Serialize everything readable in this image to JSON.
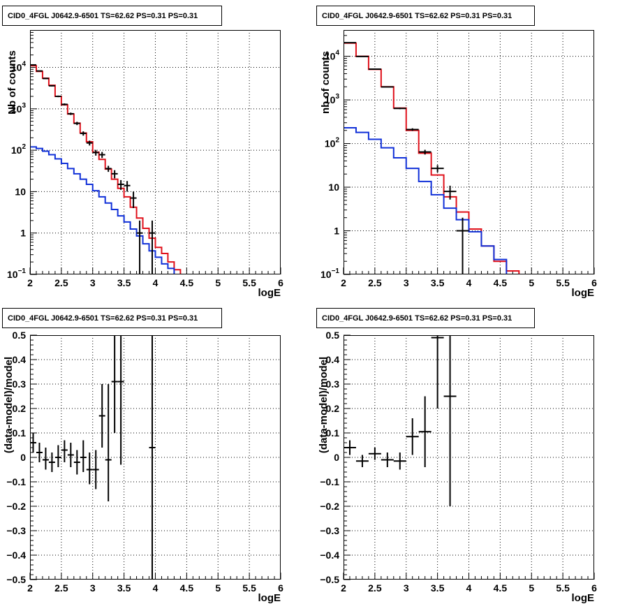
{
  "colors": {
    "data": "#000000",
    "total_model": "#e0101a",
    "component": "#1030d8",
    "grid": "#000000"
  },
  "chart_data": [
    {
      "type": "line",
      "title": "CID0_4FGL J0642.9-6501 TS=62.62 PS=0.31 PS=0.31",
      "xlabel": "logE",
      "ylabel": "Nb of counts",
      "xlim": [
        2,
        6
      ],
      "ylim": [
        0.1,
        80000
      ],
      "yscale": "log",
      "grid": true,
      "xticks": [
        "2",
        "2.5",
        "3",
        "3.5",
        "4",
        "4.5",
        "5",
        "5.5",
        "6"
      ],
      "yticks": [
        {
          "value": 0.1,
          "label": "10",
          "exp": "−1"
        },
        {
          "value": 1,
          "label": "1",
          "exp": ""
        },
        {
          "value": 10,
          "label": "10",
          "exp": ""
        },
        {
          "value": 100,
          "label": "10",
          "exp": "2"
        },
        {
          "value": 1000,
          "label": "10",
          "exp": "3"
        },
        {
          "value": 10000,
          "label": "10",
          "exp": "4"
        }
      ],
      "series": [
        {
          "role": "total_model",
          "style": "step",
          "edges": [
            2.0,
            2.1,
            2.2,
            2.3,
            2.4,
            2.5,
            2.6,
            2.7,
            2.8,
            2.9,
            3.0,
            3.1,
            3.2,
            3.3,
            3.4,
            3.5,
            3.6,
            3.7,
            3.8,
            3.9,
            4.0,
            4.1,
            4.2,
            4.3,
            4.4,
            4.5,
            4.6,
            4.7,
            4.8,
            4.9,
            5.0,
            5.1,
            5.2,
            5.3,
            5.4,
            5.5,
            5.6,
            5.7,
            5.8,
            5.9,
            6.0
          ],
          "values": [
            11000,
            8000,
            5500,
            3700,
            2000,
            1250,
            750,
            450,
            260,
            160,
            90,
            60,
            35,
            20,
            12,
            7.5,
            4.2,
            2.3,
            1.3,
            0.75,
            0.45,
            0.32,
            0.2,
            0.13,
            0.1,
            0.1,
            0.1,
            0.1,
            0.1,
            0.1,
            0.1,
            0.1,
            0.1,
            0.1,
            0.1,
            0.1,
            0.1,
            0.1,
            0.1,
            0.1
          ]
        },
        {
          "role": "component",
          "style": "step",
          "edges": [
            2.0,
            2.1,
            2.2,
            2.3,
            2.4,
            2.5,
            2.6,
            2.7,
            2.8,
            2.9,
            3.0,
            3.1,
            3.2,
            3.3,
            3.4,
            3.5,
            3.6,
            3.7,
            3.8,
            3.9,
            4.0,
            4.1,
            4.2,
            4.3,
            4.4,
            4.5,
            4.6,
            4.7,
            4.8,
            4.9,
            5.0,
            5.1,
            5.2,
            5.3,
            5.4,
            5.5,
            5.6,
            5.7,
            5.8,
            5.9,
            6.0
          ],
          "values": [
            120,
            110,
            95,
            78,
            62,
            48,
            36,
            27,
            20,
            15,
            10.5,
            7.5,
            5.3,
            3.7,
            2.6,
            1.85,
            1.25,
            0.85,
            0.55,
            0.37,
            0.26,
            0.18,
            0.14,
            0.1,
            0.1,
            0.1,
            0.1,
            0.1,
            0.1,
            0.1,
            0.1,
            0.1,
            0.1,
            0.1,
            0.1,
            0.1,
            0.1,
            0.1,
            0.1,
            0.1
          ]
        },
        {
          "role": "data",
          "style": "errorbar",
          "xhalf": 0.05,
          "points": [
            {
              "x": 2.05,
              "y": 11500,
              "lo": 11290,
              "hi": 11710
            },
            {
              "x": 2.15,
              "y": 8200,
              "lo": 8020,
              "hi": 8380
            },
            {
              "x": 2.25,
              "y": 5400,
              "lo": 5250,
              "hi": 5550
            },
            {
              "x": 2.35,
              "y": 3600,
              "lo": 3480,
              "hi": 3720
            },
            {
              "x": 2.45,
              "y": 2000,
              "lo": 1910,
              "hi": 2090
            },
            {
              "x": 2.55,
              "y": 1280,
              "lo": 1210,
              "hi": 1350
            },
            {
              "x": 2.65,
              "y": 760,
              "lo": 710,
              "hi": 810
            },
            {
              "x": 2.75,
              "y": 445,
              "lo": 405,
              "hi": 485
            },
            {
              "x": 2.85,
              "y": 255,
              "lo": 225,
              "hi": 285
            },
            {
              "x": 2.95,
              "y": 150,
              "lo": 130,
              "hi": 170
            },
            {
              "x": 3.05,
              "y": 88,
              "lo": 74,
              "hi": 102
            },
            {
              "x": 3.15,
              "y": 78,
              "lo": 65,
              "hi": 91
            },
            {
              "x": 3.25,
              "y": 36,
              "lo": 30,
              "hi": 42
            },
            {
              "x": 3.35,
              "y": 27,
              "lo": 21,
              "hi": 33
            },
            {
              "x": 3.45,
              "y": 15,
              "lo": 11,
              "hi": 19
            },
            {
              "x": 3.55,
              "y": 14,
              "lo": 10,
              "hi": 18
            },
            {
              "x": 3.65,
              "y": 7,
              "lo": 4,
              "hi": 10
            },
            {
              "x": 3.75,
              "y": 1,
              "lo": 0.1,
              "hi": 2
            },
            {
              "x": 3.95,
              "y": 1,
              "lo": 0.1,
              "hi": 2
            }
          ]
        }
      ]
    },
    {
      "type": "line",
      "title": "CID0_4FGL J0642.9-6501 TS=62.62 PS=0.31 PS=0.31",
      "xlabel": "logE",
      "ylabel": "nb of counts",
      "xlim": [
        2,
        6
      ],
      "ylim": [
        0.1,
        40000
      ],
      "yscale": "log",
      "grid": true,
      "xticks": [
        "2",
        "2.5",
        "3",
        "3.5",
        "4",
        "4.5",
        "5",
        "5.5",
        "6"
      ],
      "yticks": [
        {
          "value": 0.1,
          "label": "10",
          "exp": "−1"
        },
        {
          "value": 1,
          "label": "1",
          "exp": ""
        },
        {
          "value": 10,
          "label": "10",
          "exp": ""
        },
        {
          "value": 100,
          "label": "10",
          "exp": "2"
        },
        {
          "value": 1000,
          "label": "10",
          "exp": "3"
        },
        {
          "value": 10000,
          "label": "10",
          "exp": "4"
        }
      ],
      "series": [
        {
          "role": "total_model",
          "style": "step",
          "edges": [
            2.0,
            2.2,
            2.4,
            2.6,
            2.8,
            3.0,
            3.2,
            3.4,
            3.6,
            3.8,
            4.0,
            4.2,
            4.4,
            4.6,
            4.8,
            5.0,
            5.2,
            5.4,
            5.6,
            5.8,
            6.0
          ],
          "values": [
            20000,
            10000,
            5000,
            2000,
            650,
            200,
            60,
            19,
            6,
            2.7,
            1.1,
            0.45,
            0.2,
            0.12,
            0.1,
            0.1,
            0.1,
            0.1,
            0.1,
            0.1
          ]
        },
        {
          "role": "component",
          "style": "step",
          "edges": [
            2.0,
            2.2,
            2.4,
            2.6,
            2.8,
            3.0,
            3.2,
            3.4,
            3.6,
            3.8,
            4.0,
            4.2,
            4.4,
            4.6,
            4.8,
            5.0,
            5.2,
            5.4,
            5.6,
            5.8,
            6.0
          ],
          "values": [
            230,
            180,
            125,
            80,
            47,
            27,
            13.5,
            6.7,
            3.3,
            1.8,
            0.95,
            0.45,
            0.22,
            0.1,
            0.1,
            0.1,
            0.1,
            0.1,
            0.1,
            0.1
          ]
        },
        {
          "role": "data",
          "style": "errorbar",
          "xhalf": 0.1,
          "points": [
            {
              "x": 2.1,
              "y": 20500,
              "lo": 20350,
              "hi": 20650
            },
            {
              "x": 2.3,
              "y": 9900,
              "lo": 9800,
              "hi": 10000
            },
            {
              "x": 2.5,
              "y": 5080,
              "lo": 5010,
              "hi": 5150
            },
            {
              "x": 2.7,
              "y": 1980,
              "lo": 1935,
              "hi": 2025
            },
            {
              "x": 2.9,
              "y": 640,
              "lo": 615,
              "hi": 665
            },
            {
              "x": 3.1,
              "y": 210,
              "lo": 196,
              "hi": 224
            },
            {
              "x": 3.3,
              "y": 64,
              "lo": 56,
              "hi": 72
            },
            {
              "x": 3.5,
              "y": 27,
              "lo": 22,
              "hi": 32
            },
            {
              "x": 3.7,
              "y": 8,
              "lo": 5.2,
              "hi": 10.8
            },
            {
              "x": 3.9,
              "y": 1,
              "lo": 0.1,
              "hi": 2
            }
          ]
        }
      ]
    },
    {
      "type": "scatter",
      "title": "CID0_4FGL J0642.9-6501 TS=62.62 PS=0.31 PS=0.31",
      "xlabel": "logE",
      "ylabel": "(data-model)/model",
      "xlim": [
        2,
        6
      ],
      "ylim": [
        -0.5,
        0.5
      ],
      "yscale": "linear",
      "grid": true,
      "xticks": [
        "2",
        "2.5",
        "3",
        "3.5",
        "4",
        "4.5",
        "5",
        "5.5",
        "6"
      ],
      "yticks": [
        {
          "value": -0.5,
          "label": "−0.5"
        },
        {
          "value": -0.4,
          "label": "−0.4"
        },
        {
          "value": -0.3,
          "label": "−0.3"
        },
        {
          "value": -0.2,
          "label": "−0.2"
        },
        {
          "value": -0.1,
          "label": "−0.1"
        },
        {
          "value": 0,
          "label": "0"
        },
        {
          "value": 0.1,
          "label": "0.1"
        },
        {
          "value": 0.2,
          "label": "0.2"
        },
        {
          "value": 0.3,
          "label": "0.3"
        },
        {
          "value": 0.4,
          "label": "0.4"
        },
        {
          "value": 0.5,
          "label": "0.5"
        }
      ],
      "series": [
        {
          "role": "data",
          "style": "errorbar",
          "xhalf": 0.05,
          "points": [
            {
              "x": 2.05,
              "y": 0.06,
              "lo": 0.02,
              "hi": 0.1
            },
            {
              "x": 2.15,
              "y": 0.02,
              "lo": -0.02,
              "hi": 0.06
            },
            {
              "x": 2.25,
              "y": -0.01,
              "lo": -0.05,
              "hi": 0.04
            },
            {
              "x": 2.35,
              "y": -0.02,
              "lo": -0.06,
              "hi": 0.02
            },
            {
              "x": 2.45,
              "y": 0.0,
              "lo": -0.04,
              "hi": 0.05
            },
            {
              "x": 2.55,
              "y": 0.03,
              "lo": -0.02,
              "hi": 0.07
            },
            {
              "x": 2.65,
              "y": 0.01,
              "lo": -0.04,
              "hi": 0.06
            },
            {
              "x": 2.75,
              "y": -0.02,
              "lo": -0.07,
              "hi": 0.03
            },
            {
              "x": 2.85,
              "y": 0.0,
              "lo": -0.06,
              "hi": 0.07
            },
            {
              "x": 2.95,
              "y": -0.05,
              "lo": -0.11,
              "hi": 0.02
            },
            {
              "x": 3.05,
              "y": -0.05,
              "lo": -0.13,
              "hi": 0.03
            },
            {
              "x": 3.15,
              "y": 0.17,
              "lo": 0.04,
              "hi": 0.3
            },
            {
              "x": 3.25,
              "y": -0.01,
              "lo": -0.18,
              "hi": 0.3
            },
            {
              "x": 3.35,
              "y": 0.31,
              "lo": 0.1,
              "hi": 0.5
            },
            {
              "x": 3.45,
              "y": 0.31,
              "lo": -0.03,
              "hi": 0.5
            },
            {
              "x": 3.95,
              "y": 0.04,
              "lo": -0.5,
              "hi": 0.5
            }
          ]
        }
      ]
    },
    {
      "type": "scatter",
      "title": "CID0_4FGL J0642.9-6501 TS=62.62 PS=0.31 PS=0.31",
      "xlabel": "logE",
      "ylabel": "(data-model)/model",
      "xlim": [
        2,
        6
      ],
      "ylim": [
        -0.5,
        0.5
      ],
      "yscale": "linear",
      "grid": true,
      "xticks": [
        "2",
        "2.5",
        "3",
        "3.5",
        "4",
        "4.5",
        "5",
        "5.5",
        "6"
      ],
      "yticks": [
        {
          "value": -0.5,
          "label": "−0.5"
        },
        {
          "value": -0.4,
          "label": "−0.4"
        },
        {
          "value": -0.3,
          "label": "−0.3"
        },
        {
          "value": -0.2,
          "label": "−0.2"
        },
        {
          "value": -0.1,
          "label": "−0.1"
        },
        {
          "value": 0,
          "label": "0"
        },
        {
          "value": 0.1,
          "label": "0.1"
        },
        {
          "value": 0.2,
          "label": "0.2"
        },
        {
          "value": 0.3,
          "label": "0.3"
        },
        {
          "value": 0.4,
          "label": "0.4"
        },
        {
          "value": 0.5,
          "label": "0.5"
        }
      ],
      "series": [
        {
          "role": "data",
          "style": "errorbar",
          "xhalf": 0.1,
          "points": [
            {
              "x": 2.1,
              "y": 0.04,
              "lo": 0.01,
              "hi": 0.07
            },
            {
              "x": 2.3,
              "y": -0.015,
              "lo": -0.04,
              "hi": 0.01
            },
            {
              "x": 2.5,
              "y": 0.015,
              "lo": -0.01,
              "hi": 0.04
            },
            {
              "x": 2.7,
              "y": -0.01,
              "lo": -0.04,
              "hi": 0.02
            },
            {
              "x": 2.9,
              "y": -0.015,
              "lo": -0.05,
              "hi": 0.02
            },
            {
              "x": 3.1,
              "y": 0.085,
              "lo": 0.01,
              "hi": 0.16
            },
            {
              "x": 3.3,
              "y": 0.105,
              "lo": -0.04,
              "hi": 0.25
            },
            {
              "x": 3.5,
              "y": 0.49,
              "lo": 0.2,
              "hi": 0.5
            },
            {
              "x": 3.7,
              "y": 0.25,
              "lo": -0.2,
              "hi": 0.5
            }
          ]
        }
      ]
    }
  ]
}
